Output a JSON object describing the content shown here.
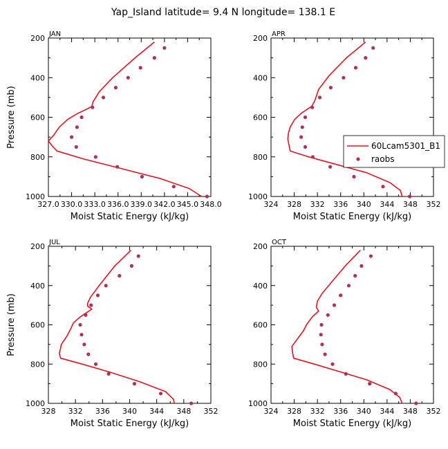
{
  "figure": {
    "title": "Yap_Island  latitude= 9.4 N longitude= 138.1 E"
  },
  "colors": {
    "model_line": "#e8121e",
    "raobs_marker": "#b0305a",
    "axes": "#000000"
  },
  "legend": {
    "placement": "right of APR panel",
    "entries": [
      "60Lcam5301_B1",
      "raobs"
    ]
  },
  "chart_data": [
    {
      "type": "line",
      "label": "JAN",
      "xlabel": "Moist Static Energy (kJ/kg)",
      "ylabel": "Pressure (mb)",
      "xlim": [
        327.0,
        348.0
      ],
      "ylim": [
        1000,
        200
      ],
      "y_inverted": true,
      "xticks": [
        327.0,
        330.0,
        333.0,
        336.0,
        339.0,
        342.0,
        345.0,
        348.0
      ],
      "xtick_labels": [
        "327.0",
        "330.0",
        "333.0",
        "336.0",
        "339.0",
        "342.0",
        "345.0",
        "348.0"
      ],
      "yticks": [
        200,
        400,
        600,
        800,
        1000
      ],
      "ytick_labels": [
        "200",
        "400",
        "600",
        "800",
        "1000"
      ],
      "series": [
        {
          "name": "60Lcam5301_B1",
          "style": "line",
          "points": [
            [
              340.7,
              220
            ],
            [
              338.2,
              300
            ],
            [
              335.3,
              400
            ],
            [
              333.6,
              470
            ],
            [
              332.8,
              520
            ],
            [
              332.6,
              545
            ],
            [
              331.9,
              560
            ],
            [
              330.8,
              580
            ],
            [
              329.5,
              610
            ],
            [
              328.4,
              650
            ],
            [
              327.7,
              690
            ],
            [
              327.0,
              720
            ],
            [
              327.5,
              745
            ],
            [
              328.1,
              770
            ],
            [
              331.5,
              810
            ],
            [
              336.5,
              860
            ],
            [
              341.5,
              910
            ],
            [
              345.2,
              960
            ],
            [
              346.8,
              1000
            ]
          ]
        },
        {
          "name": "raobs",
          "style": "marker",
          "points": [
            [
              342.0,
              250
            ],
            [
              340.7,
              300
            ],
            [
              338.9,
              350
            ],
            [
              337.3,
              400
            ],
            [
              335.7,
              450
            ],
            [
              334.1,
              500
            ],
            [
              332.7,
              550
            ],
            [
              331.3,
              600
            ],
            [
              330.7,
              650
            ],
            [
              330.0,
              700
            ],
            [
              330.6,
              750
            ],
            [
              333.1,
              800
            ],
            [
              335.9,
              850
            ],
            [
              339.1,
              900
            ],
            [
              343.2,
              950
            ],
            [
              347.5,
              1000
            ]
          ]
        }
      ]
    },
    {
      "type": "line",
      "label": "APR",
      "xlabel": "Moist Static Energy (kJ/kg)",
      "ylabel": "",
      "xlim": [
        324,
        352
      ],
      "ylim": [
        1000,
        200
      ],
      "y_inverted": true,
      "xticks": [
        324,
        328,
        332,
        336,
        340,
        344,
        348,
        352
      ],
      "xtick_labels": [
        "324",
        "328",
        "332",
        "336",
        "340",
        "344",
        "348",
        "352"
      ],
      "yticks": [
        200,
        400,
        600,
        800,
        1000
      ],
      "ytick_labels": [
        "200",
        "400",
        "600",
        "800",
        "1000"
      ],
      "series": [
        {
          "name": "60Lcam5301_B1",
          "style": "line",
          "points": [
            [
              340.3,
              220
            ],
            [
              337.0,
              300
            ],
            [
              334.0,
              390
            ],
            [
              332.2,
              460
            ],
            [
              331.5,
              520
            ],
            [
              331.0,
              545
            ],
            [
              330.2,
              560
            ],
            [
              329.2,
              580
            ],
            [
              328.1,
              610
            ],
            [
              327.3,
              650
            ],
            [
              327.0,
              680
            ],
            [
              326.9,
              710
            ],
            [
              327.1,
              740
            ],
            [
              327.3,
              770
            ],
            [
              330.5,
              800
            ],
            [
              335.5,
              840
            ],
            [
              340.5,
              880
            ],
            [
              344.5,
              930
            ],
            [
              346.3,
              970
            ],
            [
              346.6,
              1000
            ]
          ]
        },
        {
          "name": "raobs",
          "style": "marker",
          "points": [
            [
              341.6,
              250
            ],
            [
              340.3,
              300
            ],
            [
              338.6,
              350
            ],
            [
              336.5,
              400
            ],
            [
              334.3,
              450
            ],
            [
              332.4,
              500
            ],
            [
              331.1,
              550
            ],
            [
              329.9,
              600
            ],
            [
              329.4,
              650
            ],
            [
              329.2,
              700
            ],
            [
              329.9,
              750
            ],
            [
              331.2,
              800
            ],
            [
              334.2,
              850
            ],
            [
              338.3,
              900
            ],
            [
              343.3,
              950
            ],
            [
              347.9,
              1000
            ]
          ]
        }
      ]
    },
    {
      "type": "line",
      "label": "JUL",
      "xlabel": "Moist Static Energy (kJ/kg)",
      "ylabel": "Pressure (mb)",
      "xlim": [
        328,
        352
      ],
      "ylim": [
        1000,
        200
      ],
      "y_inverted": true,
      "xticks": [
        328,
        332,
        336,
        340,
        344,
        348,
        352
      ],
      "xtick_labels": [
        "328",
        "332",
        "336",
        "340",
        "344",
        "348",
        "352"
      ],
      "yticks": [
        200,
        400,
        600,
        800,
        1000
      ],
      "ytick_labels": [
        "200",
        "400",
        "600",
        "800",
        "1000"
      ],
      "series": [
        {
          "name": "60Lcam5301_B1",
          "style": "line",
          "points": [
            [
              340.2,
              220
            ],
            [
              337.8,
              300
            ],
            [
              335.5,
              400
            ],
            [
              334.2,
              460
            ],
            [
              333.8,
              490
            ],
            [
              333.8,
              505
            ],
            [
              334.4,
              520
            ],
            [
              332.7,
              560
            ],
            [
              331.7,
              590
            ],
            [
              331.3,
              620
            ],
            [
              330.7,
              660
            ],
            [
              329.9,
              700
            ],
            [
              329.8,
              720
            ],
            [
              329.6,
              745
            ],
            [
              329.8,
              770
            ],
            [
              333.0,
              800
            ],
            [
              337.0,
              840
            ],
            [
              341.5,
              890
            ],
            [
              345.3,
              940
            ],
            [
              346.5,
              980
            ],
            [
              346.6,
              1000
            ]
          ]
        },
        {
          "name": "raobs",
          "style": "marker",
          "points": [
            [
              341.3,
              250
            ],
            [
              340.3,
              300
            ],
            [
              338.5,
              350
            ],
            [
              336.5,
              400
            ],
            [
              335.3,
              450
            ],
            [
              334.3,
              500
            ],
            [
              333.5,
              550
            ],
            [
              332.7,
              600
            ],
            [
              332.9,
              650
            ],
            [
              333.3,
              700
            ],
            [
              333.9,
              750
            ],
            [
              335.0,
              800
            ],
            [
              336.9,
              850
            ],
            [
              340.7,
              900
            ],
            [
              344.6,
              950
            ],
            [
              349.1,
              1000
            ]
          ]
        }
      ]
    },
    {
      "type": "line",
      "label": "OCT",
      "xlabel": "Moist Static Energy (kJ/kg)",
      "ylabel": "",
      "xlim": [
        324,
        352
      ],
      "ylim": [
        1000,
        200
      ],
      "y_inverted": true,
      "xticks": [
        324,
        328,
        332,
        336,
        340,
        344,
        348,
        352
      ],
      "xtick_labels": [
        "324",
        "328",
        "332",
        "336",
        "340",
        "344",
        "348",
        "352"
      ],
      "yticks": [
        200,
        400,
        600,
        800,
        1000
      ],
      "ytick_labels": [
        "200",
        "400",
        "600",
        "800",
        "1000"
      ],
      "series": [
        {
          "name": "60Lcam5301_B1",
          "style": "line",
          "points": [
            [
              339.4,
              220
            ],
            [
              336.8,
              300
            ],
            [
              334.5,
              380
            ],
            [
              332.8,
              440
            ],
            [
              332.0,
              480
            ],
            [
              331.8,
              510
            ],
            [
              332.2,
              530
            ],
            [
              331.1,
              560
            ],
            [
              330.1,
              600
            ],
            [
              329.6,
              630
            ],
            [
              328.6,
              670
            ],
            [
              327.6,
              710
            ],
            [
              327.7,
              740
            ],
            [
              327.9,
              770
            ],
            [
              331.5,
              800
            ],
            [
              336.0,
              840
            ],
            [
              340.5,
              880
            ],
            [
              344.5,
              930
            ],
            [
              346.2,
              970
            ],
            [
              346.6,
              1000
            ]
          ]
        },
        {
          "name": "raobs",
          "style": "marker",
          "points": [
            [
              341.2,
              250
            ],
            [
              339.6,
              300
            ],
            [
              338.5,
              350
            ],
            [
              337.4,
              400
            ],
            [
              336.0,
              450
            ],
            [
              334.9,
              500
            ],
            [
              333.8,
              550
            ],
            [
              332.7,
              600
            ],
            [
              332.6,
              650
            ],
            [
              332.8,
              700
            ],
            [
              333.3,
              750
            ],
            [
              334.6,
              800
            ],
            [
              336.9,
              850
            ],
            [
              341.0,
              900
            ],
            [
              345.5,
              950
            ],
            [
              349.0,
              1000
            ]
          ]
        }
      ]
    }
  ]
}
